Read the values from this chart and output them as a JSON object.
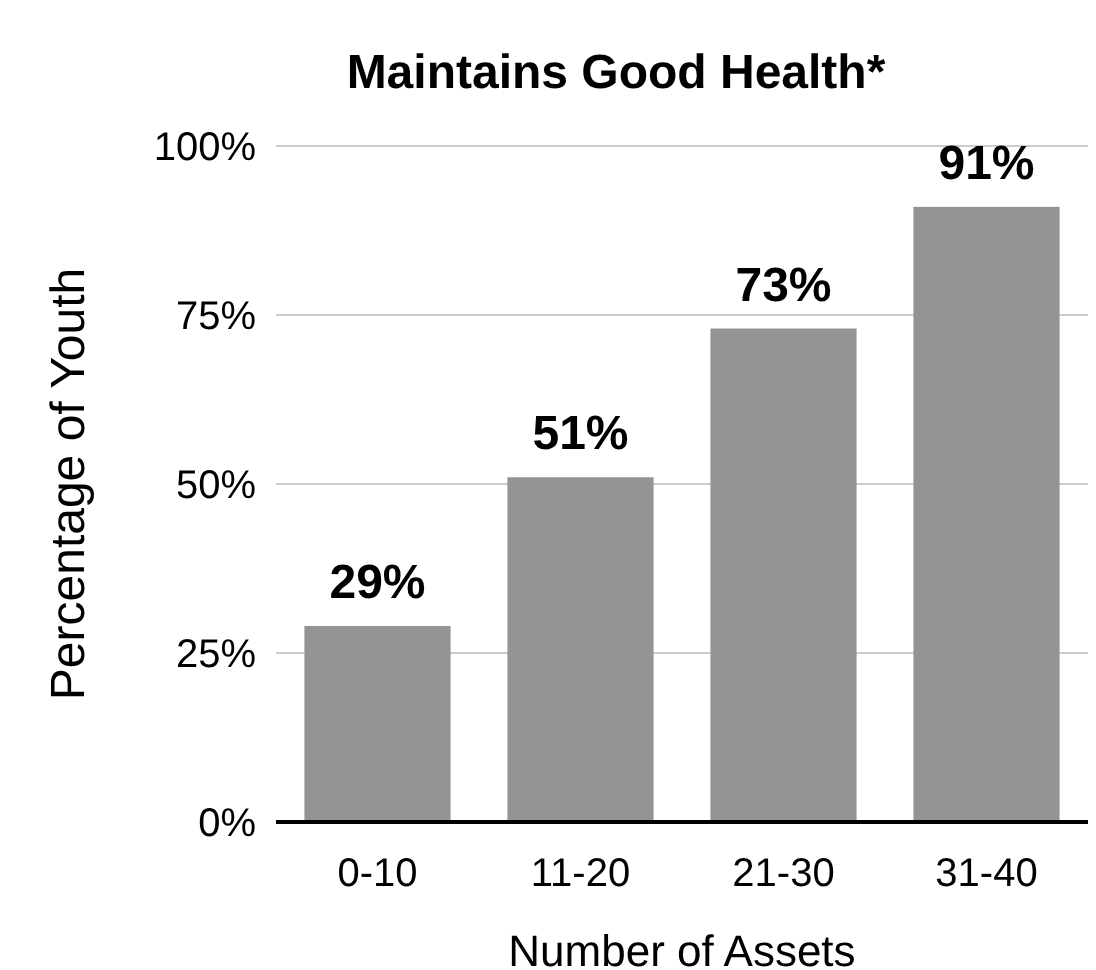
{
  "chart_data": {
    "type": "bar",
    "title": "Maintains Good Health*",
    "xlabel": "Number of Assets",
    "ylabel": "Percentage of Youth",
    "categories": [
      "0-10",
      "11-20",
      "21-30",
      "31-40"
    ],
    "values": [
      29,
      51,
      73,
      91
    ],
    "color": "#929592",
    "value_labels": [
      "29%",
      "51%",
      "73%",
      "91%"
    ],
    "ylim": [
      0,
      100
    ],
    "yticks": [
      {
        "value": 0,
        "label": "0%"
      },
      {
        "value": 25,
        "label": "25%"
      },
      {
        "value": 50,
        "label": "50%"
      },
      {
        "value": 75,
        "label": "75%"
      },
      {
        "value": 100,
        "label": "100%"
      }
    ],
    "grid": "y"
  }
}
